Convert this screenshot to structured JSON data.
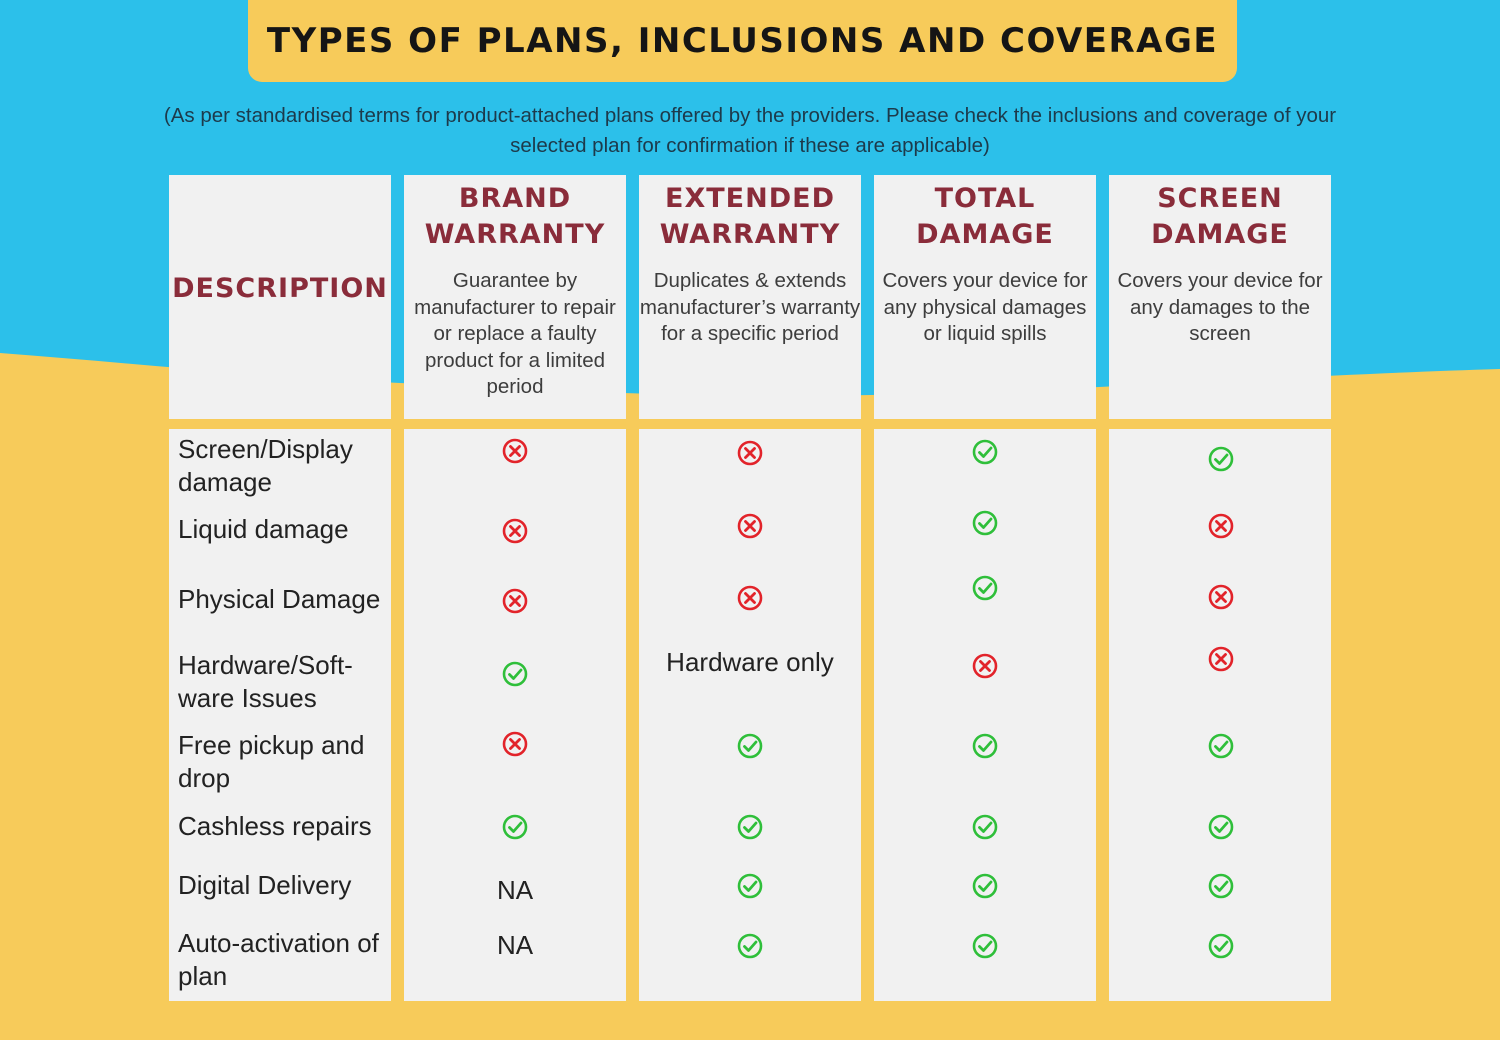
{
  "title": "TYPES OF PLANS, INCLUSIONS AND COVERAGE",
  "subtitle": "(As per standardised terms for product-attached plans offered by the providers. Please check the inclusions and coverage of your selected plan for confirmation if these are applicable)",
  "colors": {
    "sky": "#2cc0ea",
    "sand": "#f7cb5a",
    "cell": "#f1f1f1",
    "heading": "#8a2c3a",
    "check": "#2fbf3a",
    "cross": "#e2232a"
  },
  "description_header": "DESCRIPTION",
  "plans": [
    {
      "name": "BRAND\nWARRANTY",
      "description": "Guarantee by manufacturer to repair or replace a faulty product for a limited period"
    },
    {
      "name": "EXTENDED\nWARRANTY",
      "description": "Duplicates & extends manufacturer’s warranty for a specific period"
    },
    {
      "name": "TOTAL\nDAMAGE",
      "description": "Covers your device for any physical damages or liquid spills"
    },
    {
      "name": "SCREEN\nDAMAGE",
      "description": "Covers your device for any damages to the screen"
    }
  ],
  "features": [
    {
      "label": "Screen/Display damage",
      "values": [
        "cross-icon",
        "cross-icon",
        "check-icon",
        "check-icon"
      ]
    },
    {
      "label": "Liquid damage",
      "values": [
        "cross-icon",
        "cross-icon",
        "check-icon",
        "cross-icon"
      ]
    },
    {
      "label": "Physical Damage",
      "values": [
        "cross-icon",
        "cross-icon",
        "check-icon",
        "cross-icon"
      ]
    },
    {
      "label": "Hardware/Soft-ware Issues",
      "values": [
        "check-icon",
        "Hardware only",
        "cross-icon",
        "cross-icon"
      ]
    },
    {
      "label": "Free pickup and drop",
      "values": [
        "cross-icon",
        "check-icon",
        "check-icon",
        "check-icon"
      ]
    },
    {
      "label": "Cashless repairs",
      "values": [
        "check-icon",
        "check-icon",
        "check-icon",
        "check-icon"
      ]
    },
    {
      "label": "Digital Delivery",
      "values": [
        "NA",
        "check-icon",
        "check-icon",
        "check-icon"
      ]
    },
    {
      "label": "Auto-activation of plan",
      "values": [
        "NA",
        "check-icon",
        "check-icon",
        "check-icon"
      ]
    }
  ]
}
